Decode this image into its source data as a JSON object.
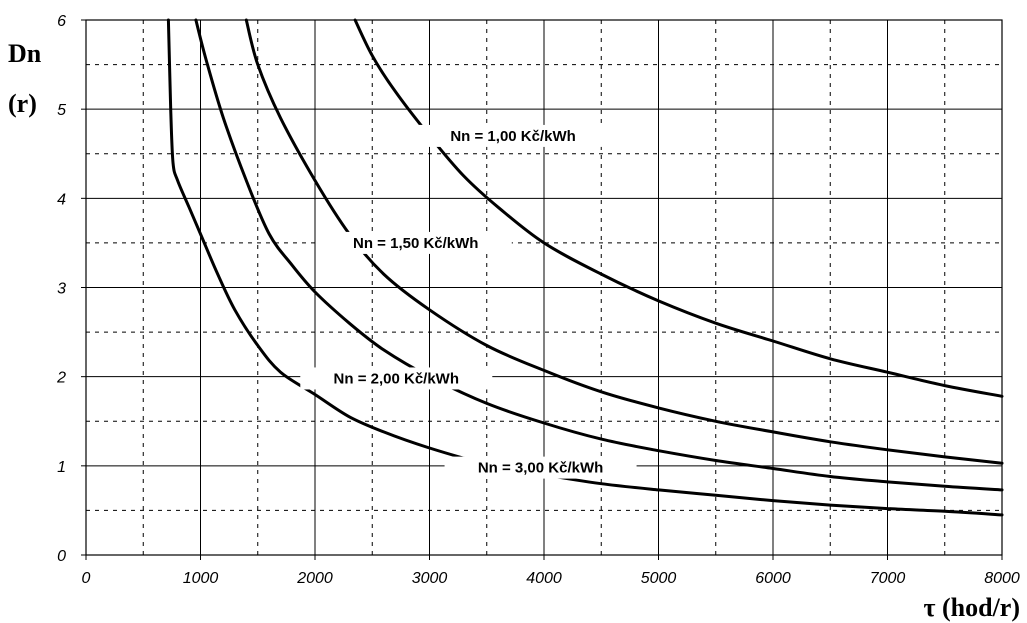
{
  "chart_data": {
    "type": "line",
    "xlabel": "τ (hod/r)",
    "ylabel_line1": "Dn",
    "ylabel_line2": "(r)",
    "xlim": [
      0,
      8000
    ],
    "ylim": [
      0,
      6
    ],
    "x_ticks": [
      "0",
      "1000",
      "2000",
      "3000",
      "4000",
      "5000",
      "6000",
      "7000",
      "8000"
    ],
    "y_ticks": [
      "0",
      "1",
      "2",
      "3",
      "4",
      "5",
      "6"
    ],
    "grid": true,
    "series": [
      {
        "name": "Nn = 1,00 Kč/kWh",
        "x": [
          2350,
          2500,
          2700,
          3000,
          3300,
          3600,
          4000,
          4500,
          5000,
          5500,
          6000,
          6500,
          7000,
          7500,
          8000
        ],
        "y": [
          6.0,
          5.6,
          5.2,
          4.7,
          4.25,
          3.9,
          3.5,
          3.15,
          2.85,
          2.6,
          2.4,
          2.2,
          2.05,
          1.9,
          1.78
        ]
      },
      {
        "name": "Nn = 1,50 Kč/kWh",
        "x": [
          1400,
          1500,
          1700,
          2000,
          2300,
          2600,
          3000,
          3500,
          4000,
          4500,
          5000,
          5500,
          6000,
          6500,
          7000,
          7500,
          8000
        ],
        "y": [
          6.0,
          5.5,
          4.9,
          4.2,
          3.6,
          3.15,
          2.75,
          2.35,
          2.07,
          1.83,
          1.65,
          1.5,
          1.38,
          1.27,
          1.18,
          1.1,
          1.03
        ]
      },
      {
        "name": "Nn = 2,00 Kč/kWh",
        "x": [
          960,
          1050,
          1200,
          1400,
          1600,
          1800,
          2000,
          2300,
          2600,
          3000,
          3500,
          4000,
          4500,
          5000,
          5500,
          6000,
          6500,
          7000,
          7500,
          8000
        ],
        "y": [
          6.0,
          5.55,
          4.9,
          4.2,
          3.6,
          3.25,
          2.95,
          2.6,
          2.3,
          2.0,
          1.7,
          1.48,
          1.3,
          1.17,
          1.06,
          0.97,
          0.88,
          0.82,
          0.77,
          0.73
        ]
      },
      {
        "name": "Nn = 3,00 Kč/kWh",
        "x": [
          720,
          740,
          760,
          800,
          900,
          1000,
          1150,
          1300,
          1500,
          1700,
          2000,
          2300,
          2600,
          3000,
          3500,
          4000,
          4500,
          5000,
          5500,
          6000,
          6500,
          7000,
          7500,
          8000
        ],
        "y": [
          6.0,
          5.0,
          4.4,
          4.2,
          3.9,
          3.6,
          3.15,
          2.75,
          2.35,
          2.05,
          1.8,
          1.55,
          1.38,
          1.2,
          1.02,
          0.9,
          0.8,
          0.73,
          0.67,
          0.61,
          0.56,
          0.52,
          0.49,
          0.45
        ]
      }
    ]
  }
}
